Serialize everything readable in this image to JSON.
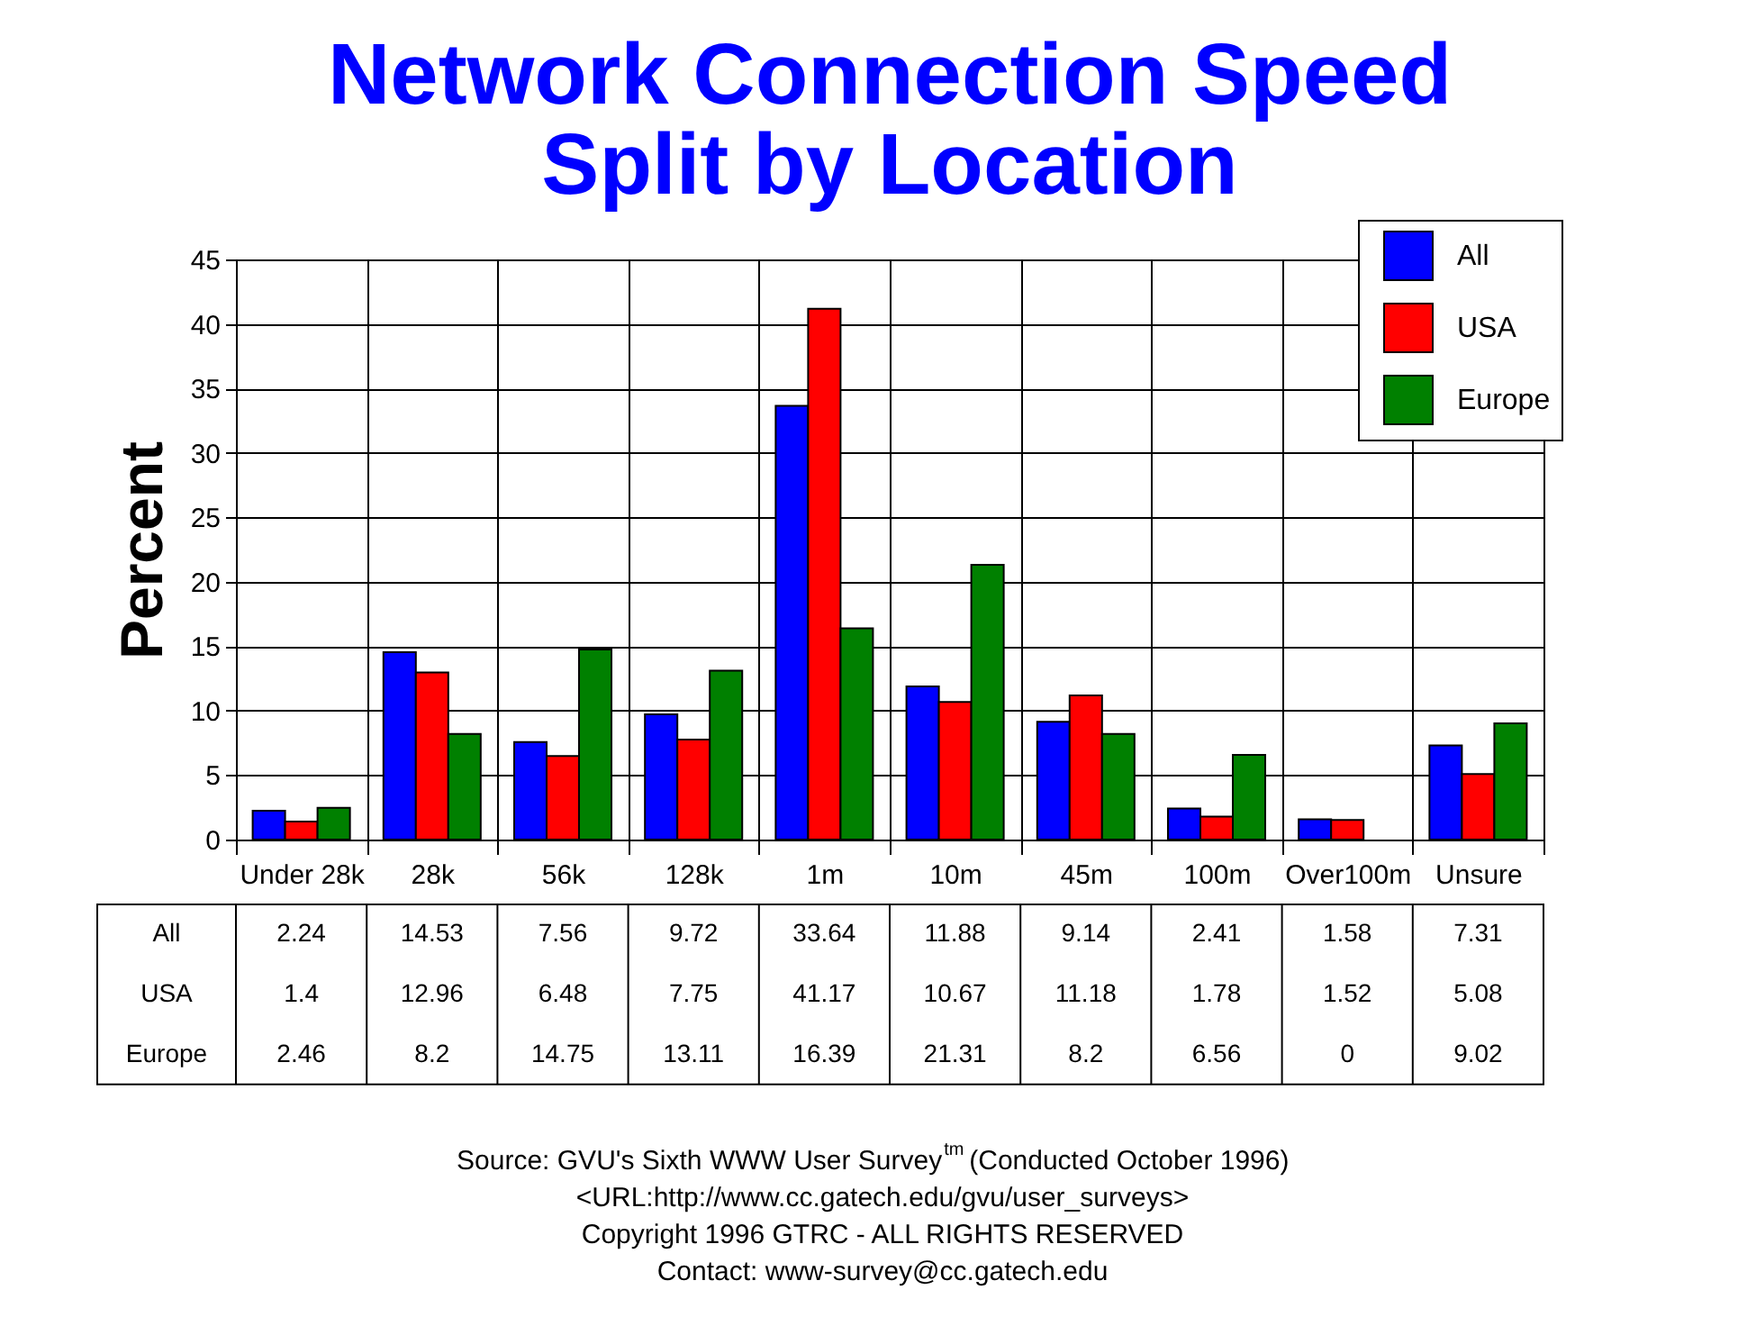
{
  "chart_data": {
    "type": "bar",
    "title": "Network Connection Speed\nSplit by Location",
    "ylabel": "Percent",
    "categories": [
      "Under 28k",
      "28k",
      "56k",
      "128k",
      "1m",
      "10m",
      "45m",
      "100m",
      "Over100m",
      "Unsure"
    ],
    "series": [
      {
        "name": "All",
        "color": "#0000ff",
        "values": [
          2.24,
          14.53,
          7.56,
          9.72,
          33.64,
          11.88,
          9.14,
          2.41,
          1.58,
          7.31
        ]
      },
      {
        "name": "USA",
        "color": "#ff0000",
        "values": [
          1.4,
          12.96,
          6.48,
          7.75,
          41.17,
          10.67,
          11.18,
          1.78,
          1.52,
          5.08
        ]
      },
      {
        "name": "Europe",
        "color": "#008000",
        "values": [
          2.46,
          8.2,
          14.75,
          13.11,
          16.39,
          21.31,
          8.2,
          6.56,
          0,
          9.02
        ]
      }
    ],
    "ylim": [
      0,
      45
    ],
    "yticks": [
      0,
      5,
      10,
      15,
      20,
      25,
      30,
      35,
      40,
      45
    ],
    "grid": true,
    "legend": "top right",
    "data_labels": true,
    "annotations": [
      "Source: GVU's Sixth WWW User Survey$^{tm}$ (Conducted October 1996)",
      "<URL:http://www.cc.gatech.edu/gvu/user_surveys>",
      "Copyright 1996 GTRC - ALL RIGHTS RESERVED",
      "Contact: www-survey@cc.gatech.edu"
    ]
  }
}
